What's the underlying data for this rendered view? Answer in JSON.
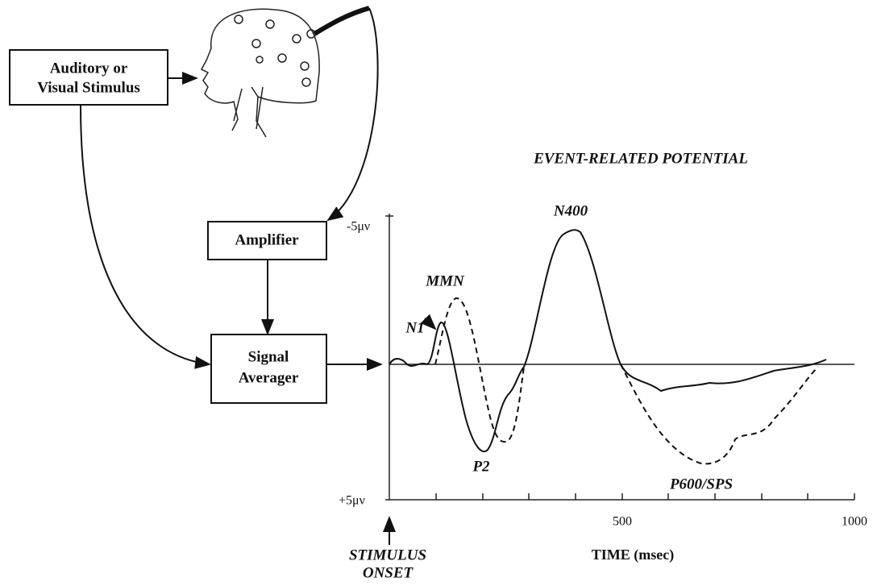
{
  "boxes": {
    "stimulus": [
      "Auditory or",
      "Visual Stimulus"
    ],
    "amplifier": "Amplifier",
    "averager": [
      "Signal",
      "Averager"
    ]
  },
  "erp": {
    "title": "EVENT-RELATED POTENTIAL",
    "y_top": "-5μν",
    "y_bottom": "+5μν",
    "x_ticks": [
      "500",
      "1000"
    ],
    "x_label": "TIME (msec)",
    "onset": [
      "STIMULUS",
      "ONSET"
    ],
    "components": {
      "n1": "N1",
      "mmn": "MMN",
      "n400": "N400",
      "p2": "P2",
      "p600": "P600/SPS"
    }
  }
}
